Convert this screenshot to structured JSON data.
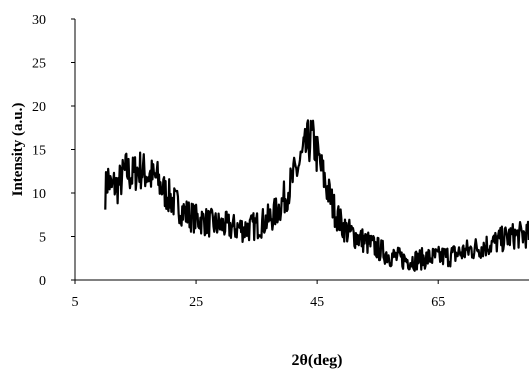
{
  "chart_data": {
    "type": "line",
    "title": "",
    "xlabel": "2θ(deg)",
    "ylabel": "Intensity (a.u.)",
    "xlim": [
      5,
      80
    ],
    "ylim": [
      0,
      30
    ],
    "x_ticks": [
      "5",
      "25",
      "45",
      "65"
    ],
    "y_ticks": [
      "0",
      "5",
      "10",
      "15",
      "20",
      "25",
      "30"
    ],
    "grid": false,
    "legend": "none",
    "series": [
      {
        "color": "#000000",
        "points": [
          [
            10.0,
            10.2
          ],
          [
            10.5,
            11.8
          ],
          [
            11.0,
            10.4
          ],
          [
            11.5,
            11.0
          ],
          [
            12.0,
            10.7
          ],
          [
            12.5,
            11.4
          ],
          [
            13.0,
            12.0
          ],
          [
            13.5,
            12.6
          ],
          [
            14.0,
            12.2
          ],
          [
            14.5,
            12.0
          ],
          [
            15.0,
            12.4
          ],
          [
            15.5,
            12.8
          ],
          [
            16.0,
            12.6
          ],
          [
            16.5,
            12.4
          ],
          [
            17.0,
            12.2
          ],
          [
            17.5,
            12.0
          ],
          [
            18.0,
            11.6
          ],
          [
            18.5,
            11.8
          ],
          [
            19.0,
            11.0
          ],
          [
            19.5,
            10.4
          ],
          [
            20.0,
            10.0
          ],
          [
            20.5,
            9.6
          ],
          [
            21.0,
            9.2
          ],
          [
            21.5,
            8.8
          ],
          [
            22.0,
            8.6
          ],
          [
            22.5,
            8.2
          ],
          [
            23.0,
            7.8
          ],
          [
            24.0,
            7.4
          ],
          [
            25.0,
            7.0
          ],
          [
            26.0,
            6.9
          ],
          [
            27.0,
            6.6
          ],
          [
            28.0,
            6.4
          ],
          [
            29.0,
            6.3
          ],
          [
            30.0,
            6.2
          ],
          [
            31.0,
            6.0
          ],
          [
            32.0,
            6.0
          ],
          [
            33.0,
            5.9
          ],
          [
            34.0,
            6.0
          ],
          [
            35.0,
            6.3
          ],
          [
            36.0,
            6.6
          ],
          [
            37.0,
            7.0
          ],
          [
            38.0,
            7.6
          ],
          [
            39.0,
            8.6
          ],
          [
            40.0,
            10.0
          ],
          [
            41.0,
            11.6
          ],
          [
            42.0,
            13.2
          ],
          [
            43.0,
            14.8
          ],
          [
            43.5,
            15.8
          ],
          [
            44.0,
            16.2
          ],
          [
            44.5,
            15.6
          ],
          [
            45.0,
            14.4
          ],
          [
            46.0,
            12.0
          ],
          [
            47.0,
            9.8
          ],
          [
            48.0,
            7.8
          ],
          [
            49.0,
            6.4
          ],
          [
            50.0,
            5.6
          ],
          [
            51.0,
            5.2
          ],
          [
            52.0,
            4.8
          ],
          [
            53.0,
            4.4
          ],
          [
            54.0,
            4.0
          ],
          [
            55.0,
            3.6
          ],
          [
            56.0,
            3.2
          ],
          [
            57.0,
            2.8
          ],
          [
            58.0,
            2.6
          ],
          [
            59.0,
            2.4
          ],
          [
            60.0,
            2.3
          ],
          [
            61.0,
            2.3
          ],
          [
            62.0,
            2.4
          ],
          [
            63.0,
            2.5
          ],
          [
            64.0,
            2.6
          ],
          [
            65.0,
            2.6
          ],
          [
            66.0,
            2.7
          ],
          [
            67.0,
            2.8
          ],
          [
            68.0,
            3.0
          ],
          [
            69.0,
            3.2
          ],
          [
            70.0,
            3.4
          ],
          [
            71.0,
            3.6
          ],
          [
            72.0,
            3.8
          ],
          [
            73.0,
            4.0
          ],
          [
            74.0,
            4.2
          ],
          [
            75.0,
            4.5
          ],
          [
            76.0,
            4.8
          ],
          [
            77.0,
            5.0
          ],
          [
            78.0,
            5.1
          ],
          [
            79.0,
            5.2
          ],
          [
            80.0,
            5.2
          ]
        ]
      }
    ]
  }
}
